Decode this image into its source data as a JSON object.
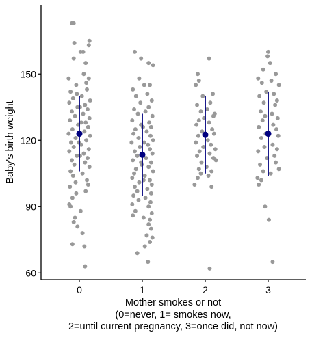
{
  "chart_data": {
    "type": "scatter",
    "subtype": "jittered strip plot with mean and SD error bars",
    "xlabel_lines": [
      "Mother smokes or not",
      "(0=never, 1= smokes now,",
      "2=until current pregnancy, 3=once did, not now)"
    ],
    "ylabel": "Baby's birth weight",
    "categories": [
      "0",
      "1",
      "2",
      "3"
    ],
    "ylim": [
      57,
      181
    ],
    "yticks": [
      60,
      90,
      120,
      150
    ],
    "grid": false,
    "point_color": "#999999",
    "summary_color": "#00007f",
    "summary": [
      {
        "category": "0",
        "mean": 123,
        "lower": 106,
        "upper": 140
      },
      {
        "category": "1",
        "mean": 113.5,
        "lower": 95,
        "upper": 132
      },
      {
        "category": "2",
        "mean": 122.5,
        "lower": 105,
        "upper": 140
      },
      {
        "category": "3",
        "mean": 123,
        "lower": 104,
        "upper": 142
      }
    ],
    "points": [
      {
        "x": 0,
        "y": 173,
        "jitter": -0.12
      },
      {
        "x": 0,
        "y": 173,
        "jitter": -0.09
      },
      {
        "x": 0,
        "y": 164,
        "jitter": -0.08
      },
      {
        "x": 0,
        "y": 165,
        "jitter": 0.16
      },
      {
        "x": 0,
        "y": 163,
        "jitter": 0.15
      },
      {
        "x": 0,
        "y": 160,
        "jitter": 0.02
      },
      {
        "x": 0,
        "y": 160,
        "jitter": 0.06
      },
      {
        "x": 0,
        "y": 157,
        "jitter": -0.09
      },
      {
        "x": 0,
        "y": 155,
        "jitter": 0.1
      },
      {
        "x": 0,
        "y": 150,
        "jitter": 0.07
      },
      {
        "x": 0,
        "y": 148,
        "jitter": -0.17
      },
      {
        "x": 0,
        "y": 148,
        "jitter": 0.15
      },
      {
        "x": 0,
        "y": 145,
        "jitter": -0.05
      },
      {
        "x": 0,
        "y": 143,
        "jitter": 0.12
      },
      {
        "x": 0,
        "y": 142,
        "jitter": -0.14
      },
      {
        "x": 0,
        "y": 140,
        "jitter": 0.04
      },
      {
        "x": 0,
        "y": 139,
        "jitter": -0.1
      },
      {
        "x": 0,
        "y": 138,
        "jitter": 0.17
      },
      {
        "x": 0,
        "y": 137,
        "jitter": -0.16
      },
      {
        "x": 0,
        "y": 136,
        "jitter": 0.09
      },
      {
        "x": 0,
        "y": 135,
        "jitter": -0.03
      },
      {
        "x": 0,
        "y": 134,
        "jitter": 0.13
      },
      {
        "x": 0,
        "y": 133,
        "jitter": -0.12
      },
      {
        "x": 0,
        "y": 132,
        "jitter": 0.06
      },
      {
        "x": 0,
        "y": 131,
        "jitter": -0.07
      },
      {
        "x": 0,
        "y": 130,
        "jitter": 0.16
      },
      {
        "x": 0,
        "y": 129,
        "jitter": -0.15
      },
      {
        "x": 0,
        "y": 128,
        "jitter": 0.1
      },
      {
        "x": 0,
        "y": 127,
        "jitter": -0.02
      },
      {
        "x": 0,
        "y": 126,
        "jitter": 0.14
      },
      {
        "x": 0,
        "y": 125,
        "jitter": -0.11
      },
      {
        "x": 0,
        "y": 124,
        "jitter": 0.08
      },
      {
        "x": 0,
        "y": 123,
        "jitter": -0.17
      },
      {
        "x": 0,
        "y": 122,
        "jitter": 0.17
      },
      {
        "x": 0,
        "y": 121,
        "jitter": -0.06
      },
      {
        "x": 0,
        "y": 120,
        "jitter": 0.11
      },
      {
        "x": 0,
        "y": 119,
        "jitter": -0.13
      },
      {
        "x": 0,
        "y": 118,
        "jitter": 0.03
      },
      {
        "x": 0,
        "y": 117,
        "jitter": -0.09
      },
      {
        "x": 0,
        "y": 116,
        "jitter": 0.15
      },
      {
        "x": 0,
        "y": 115,
        "jitter": -0.16
      },
      {
        "x": 0,
        "y": 114,
        "jitter": 0.07
      },
      {
        "x": 0,
        "y": 113,
        "jitter": -0.04
      },
      {
        "x": 0,
        "y": 112,
        "jitter": 0.13
      },
      {
        "x": 0,
        "y": 111,
        "jitter": -0.12
      },
      {
        "x": 0,
        "y": 110,
        "jitter": 0.09
      },
      {
        "x": 0,
        "y": 109,
        "jitter": -0.08
      },
      {
        "x": 0,
        "y": 108,
        "jitter": 0.16
      },
      {
        "x": 0,
        "y": 106,
        "jitter": -0.14
      },
      {
        "x": 0,
        "y": 105,
        "jitter": 0.05
      },
      {
        "x": 0,
        "y": 104,
        "jitter": -0.1
      },
      {
        "x": 0,
        "y": 102,
        "jitter": 0.12
      },
      {
        "x": 0,
        "y": 101,
        "jitter": -0.06
      },
      {
        "x": 0,
        "y": 100,
        "jitter": 0.14
      },
      {
        "x": 0,
        "y": 99,
        "jitter": -0.15
      },
      {
        "x": 0,
        "y": 97,
        "jitter": 0.1
      },
      {
        "x": 0,
        "y": 96,
        "jitter": -0.05
      },
      {
        "x": 0,
        "y": 94,
        "jitter": -0.11
      },
      {
        "x": 0,
        "y": 91,
        "jitter": -0.16
      },
      {
        "x": 0,
        "y": 90,
        "jitter": -0.14
      },
      {
        "x": 0,
        "y": 88,
        "jitter": 0.02
      },
      {
        "x": 0,
        "y": 85,
        "jitter": -0.07
      },
      {
        "x": 0,
        "y": 83,
        "jitter": -0.09
      },
      {
        "x": 0,
        "y": 81,
        "jitter": -0.03
      },
      {
        "x": 0,
        "y": 78,
        "jitter": 0.05
      },
      {
        "x": 0,
        "y": 73,
        "jitter": -0.11
      },
      {
        "x": 0,
        "y": 72,
        "jitter": 0.08
      },
      {
        "x": 0,
        "y": 63,
        "jitter": 0.09
      },
      {
        "x": 0,
        "y": 135,
        "jitter": 0.01
      },
      {
        "x": 0,
        "y": 128,
        "jitter": 0.03
      },
      {
        "x": 0,
        "y": 119,
        "jitter": -0.01
      },
      {
        "x": 0,
        "y": 113,
        "jitter": 0.01
      },
      {
        "x": 0,
        "y": 146,
        "jitter": 0.11
      },
      {
        "x": 0,
        "y": 141,
        "jitter": -0.04
      },
      {
        "x": 1,
        "y": 160,
        "jitter": -0.12
      },
      {
        "x": 1,
        "y": 157,
        "jitter": -0.02
      },
      {
        "x": 1,
        "y": 155,
        "jitter": 0.1
      },
      {
        "x": 1,
        "y": 154,
        "jitter": 0.17
      },
      {
        "x": 1,
        "y": 148,
        "jitter": -0.05
      },
      {
        "x": 1,
        "y": 145,
        "jitter": 0.03
      },
      {
        "x": 1,
        "y": 145,
        "jitter": 0.12
      },
      {
        "x": 1,
        "y": 143,
        "jitter": -0.15
      },
      {
        "x": 1,
        "y": 141,
        "jitter": 0.08
      },
      {
        "x": 1,
        "y": 140,
        "jitter": -0.1
      },
      {
        "x": 1,
        "y": 138,
        "jitter": 0.15
      },
      {
        "x": 1,
        "y": 137,
        "jitter": -0.03
      },
      {
        "x": 1,
        "y": 135,
        "jitter": 0.1
      },
      {
        "x": 1,
        "y": 134,
        "jitter": -0.13
      },
      {
        "x": 1,
        "y": 133,
        "jitter": 0.05
      },
      {
        "x": 1,
        "y": 132,
        "jitter": -0.07
      },
      {
        "x": 1,
        "y": 131,
        "jitter": 0.16
      },
      {
        "x": 1,
        "y": 129,
        "jitter": -0.16
      },
      {
        "x": 1,
        "y": 128,
        "jitter": 0.11
      },
      {
        "x": 1,
        "y": 127,
        "jitter": -0.02
      },
      {
        "x": 1,
        "y": 126,
        "jitter": 0.14
      },
      {
        "x": 1,
        "y": 125,
        "jitter": -0.11
      },
      {
        "x": 1,
        "y": 124,
        "jitter": 0.07
      },
      {
        "x": 1,
        "y": 123,
        "jitter": -0.14
      },
      {
        "x": 1,
        "y": 122,
        "jitter": 0.13
      },
      {
        "x": 1,
        "y": 121,
        "jitter": -0.06
      },
      {
        "x": 1,
        "y": 120,
        "jitter": 0.17
      },
      {
        "x": 1,
        "y": 119,
        "jitter": -0.17
      },
      {
        "x": 1,
        "y": 118,
        "jitter": 0.09
      },
      {
        "x": 1,
        "y": 117,
        "jitter": -0.04
      },
      {
        "x": 1,
        "y": 116,
        "jitter": 0.12
      },
      {
        "x": 1,
        "y": 115,
        "jitter": -0.12
      },
      {
        "x": 1,
        "y": 114,
        "jitter": 0.16
      },
      {
        "x": 1,
        "y": 113,
        "jitter": -0.08
      },
      {
        "x": 1,
        "y": 112,
        "jitter": 0.06
      },
      {
        "x": 1,
        "y": 111,
        "jitter": -0.15
      },
      {
        "x": 1,
        "y": 110,
        "jitter": 0.14
      },
      {
        "x": 1,
        "y": 109,
        "jitter": -0.01
      },
      {
        "x": 1,
        "y": 108,
        "jitter": 0.1
      },
      {
        "x": 1,
        "y": 107,
        "jitter": -0.1
      },
      {
        "x": 1,
        "y": 106,
        "jitter": 0.17
      },
      {
        "x": 1,
        "y": 105,
        "jitter": -0.13
      },
      {
        "x": 1,
        "y": 104,
        "jitter": 0.04
      },
      {
        "x": 1,
        "y": 103,
        "jitter": -0.16
      },
      {
        "x": 1,
        "y": 102,
        "jitter": 0.12
      },
      {
        "x": 1,
        "y": 101,
        "jitter": -0.05
      },
      {
        "x": 1,
        "y": 100,
        "jitter": 0.15
      },
      {
        "x": 1,
        "y": 99,
        "jitter": -0.12
      },
      {
        "x": 1,
        "y": 98,
        "jitter": 0.08
      },
      {
        "x": 1,
        "y": 97,
        "jitter": -0.08
      },
      {
        "x": 1,
        "y": 96,
        "jitter": 0.14
      },
      {
        "x": 1,
        "y": 95,
        "jitter": -0.14
      },
      {
        "x": 1,
        "y": 94,
        "jitter": 0.05
      },
      {
        "x": 1,
        "y": 93,
        "jitter": -0.06
      },
      {
        "x": 1,
        "y": 92,
        "jitter": 0.13
      },
      {
        "x": 1,
        "y": 91,
        "jitter": -0.16
      },
      {
        "x": 1,
        "y": 90,
        "jitter": 0.1
      },
      {
        "x": 1,
        "y": 88,
        "jitter": -0.11
      },
      {
        "x": 1,
        "y": 87,
        "jitter": 0.15
      },
      {
        "x": 1,
        "y": 86,
        "jitter": -0.15
      },
      {
        "x": 1,
        "y": 85,
        "jitter": 0.02
      },
      {
        "x": 1,
        "y": 84,
        "jitter": 0.12
      },
      {
        "x": 1,
        "y": 82,
        "jitter": 0.1
      },
      {
        "x": 1,
        "y": 80,
        "jitter": 0.14
      },
      {
        "x": 1,
        "y": 77,
        "jitter": 0.07
      },
      {
        "x": 1,
        "y": 76,
        "jitter": 0.16
      },
      {
        "x": 1,
        "y": 74,
        "jitter": 0.12
      },
      {
        "x": 1,
        "y": 72,
        "jitter": 0.04
      },
      {
        "x": 1,
        "y": 69,
        "jitter": -0.08
      },
      {
        "x": 1,
        "y": 65,
        "jitter": 0.09
      },
      {
        "x": 1,
        "y": 126,
        "jitter": 0.01
      },
      {
        "x": 1,
        "y": 119,
        "jitter": 0.03
      },
      {
        "x": 1,
        "y": 110,
        "jitter": -0.02
      },
      {
        "x": 1,
        "y": 102,
        "jitter": 0.02
      },
      {
        "x": 2,
        "y": 157,
        "jitter": 0.06
      },
      {
        "x": 2,
        "y": 150,
        "jitter": -0.12
      },
      {
        "x": 2,
        "y": 147,
        "jitter": -0.1
      },
      {
        "x": 2,
        "y": 145,
        "jitter": -0.15
      },
      {
        "x": 2,
        "y": 141,
        "jitter": 0.12
      },
      {
        "x": 2,
        "y": 140,
        "jitter": -0.04
      },
      {
        "x": 2,
        "y": 137,
        "jitter": 0.08
      },
      {
        "x": 2,
        "y": 136,
        "jitter": -0.13
      },
      {
        "x": 2,
        "y": 134,
        "jitter": 0.03
      },
      {
        "x": 2,
        "y": 133,
        "jitter": -0.07
      },
      {
        "x": 2,
        "y": 132,
        "jitter": 0.15
      },
      {
        "x": 2,
        "y": 131,
        "jitter": 0.13
      },
      {
        "x": 2,
        "y": 130,
        "jitter": -0.02
      },
      {
        "x": 2,
        "y": 129,
        "jitter": -0.1
      },
      {
        "x": 2,
        "y": 128,
        "jitter": 0.06
      },
      {
        "x": 2,
        "y": 127,
        "jitter": -0.14
      },
      {
        "x": 2,
        "y": 125,
        "jitter": 0.11
      },
      {
        "x": 2,
        "y": 124,
        "jitter": -0.05
      },
      {
        "x": 2,
        "y": 123,
        "jitter": 0.14
      },
      {
        "x": 2,
        "y": 122,
        "jitter": -0.11
      },
      {
        "x": 2,
        "y": 120,
        "jitter": 0.04
      },
      {
        "x": 2,
        "y": 119,
        "jitter": -0.15
      },
      {
        "x": 2,
        "y": 118,
        "jitter": 0.09
      },
      {
        "x": 2,
        "y": 117,
        "jitter": -0.03
      },
      {
        "x": 2,
        "y": 116,
        "jitter": 0.16
      },
      {
        "x": 2,
        "y": 115,
        "jitter": -0.09
      },
      {
        "x": 2,
        "y": 114,
        "jitter": 0.07
      },
      {
        "x": 2,
        "y": 113,
        "jitter": -0.13
      },
      {
        "x": 2,
        "y": 112,
        "jitter": 0.13
      },
      {
        "x": 2,
        "y": 111,
        "jitter": 0.17
      },
      {
        "x": 2,
        "y": 110,
        "jitter": -0.06
      },
      {
        "x": 2,
        "y": 108,
        "jitter": 0.02
      },
      {
        "x": 2,
        "y": 107,
        "jitter": -0.1
      },
      {
        "x": 2,
        "y": 106,
        "jitter": 0.1
      },
      {
        "x": 2,
        "y": 105,
        "jitter": -0.07
      },
      {
        "x": 2,
        "y": 104,
        "jitter": 0.05
      },
      {
        "x": 2,
        "y": 103,
        "jitter": -0.12
      },
      {
        "x": 2,
        "y": 100,
        "jitter": -0.17
      },
      {
        "x": 2,
        "y": 99,
        "jitter": 0.1
      },
      {
        "x": 2,
        "y": 62,
        "jitter": 0.07
      },
      {
        "x": 3,
        "y": 160,
        "jitter": 0.0
      },
      {
        "x": 3,
        "y": 158,
        "jitter": -0.01
      },
      {
        "x": 3,
        "y": 155,
        "jitter": 0.03
      },
      {
        "x": 3,
        "y": 152,
        "jitter": -0.08
      },
      {
        "x": 3,
        "y": 150,
        "jitter": 0.12
      },
      {
        "x": 3,
        "y": 148,
        "jitter": -0.16
      },
      {
        "x": 3,
        "y": 147,
        "jitter": 0.05
      },
      {
        "x": 3,
        "y": 146,
        "jitter": -0.1
      },
      {
        "x": 3,
        "y": 145,
        "jitter": 0.17
      },
      {
        "x": 3,
        "y": 142,
        "jitter": -0.03
      },
      {
        "x": 3,
        "y": 141,
        "jitter": 0.09
      },
      {
        "x": 3,
        "y": 140,
        "jitter": -0.14
      },
      {
        "x": 3,
        "y": 138,
        "jitter": 0.14
      },
      {
        "x": 3,
        "y": 137,
        "jitter": -0.07
      },
      {
        "x": 3,
        "y": 136,
        "jitter": 0.11
      },
      {
        "x": 3,
        "y": 133,
        "jitter": -0.12
      },
      {
        "x": 3,
        "y": 132,
        "jitter": 0.06
      },
      {
        "x": 3,
        "y": 131,
        "jitter": -0.05
      },
      {
        "x": 3,
        "y": 130,
        "jitter": 0.15
      },
      {
        "x": 3,
        "y": 129,
        "jitter": -0.09
      },
      {
        "x": 3,
        "y": 127,
        "jitter": 0.08
      },
      {
        "x": 3,
        "y": 126,
        "jitter": -0.15
      },
      {
        "x": 3,
        "y": 125,
        "jitter": 0.13
      },
      {
        "x": 3,
        "y": 123,
        "jitter": -0.04
      },
      {
        "x": 3,
        "y": 122,
        "jitter": 0.16
      },
      {
        "x": 3,
        "y": 121,
        "jitter": -0.11
      },
      {
        "x": 3,
        "y": 118,
        "jitter": 0.07
      },
      {
        "x": 3,
        "y": 117,
        "jitter": -0.06
      },
      {
        "x": 3,
        "y": 116,
        "jitter": 0.14
      },
      {
        "x": 3,
        "y": 115,
        "jitter": -0.16
      },
      {
        "x": 3,
        "y": 113,
        "jitter": 0.1
      },
      {
        "x": 3,
        "y": 112,
        "jitter": -0.02
      },
      {
        "x": 3,
        "y": 110,
        "jitter": 0.12
      },
      {
        "x": 3,
        "y": 109,
        "jitter": -0.13
      },
      {
        "x": 3,
        "y": 107,
        "jitter": 0.17
      },
      {
        "x": 3,
        "y": 106,
        "jitter": -0.08
      },
      {
        "x": 3,
        "y": 105,
        "jitter": 0.04
      },
      {
        "x": 3,
        "y": 103,
        "jitter": -0.17
      },
      {
        "x": 3,
        "y": 102,
        "jitter": -0.11
      },
      {
        "x": 3,
        "y": 100,
        "jitter": -0.15
      },
      {
        "x": 3,
        "y": 90,
        "jitter": -0.05
      },
      {
        "x": 3,
        "y": 84,
        "jitter": 0.01
      },
      {
        "x": 3,
        "y": 65,
        "jitter": 0.07
      }
    ]
  }
}
